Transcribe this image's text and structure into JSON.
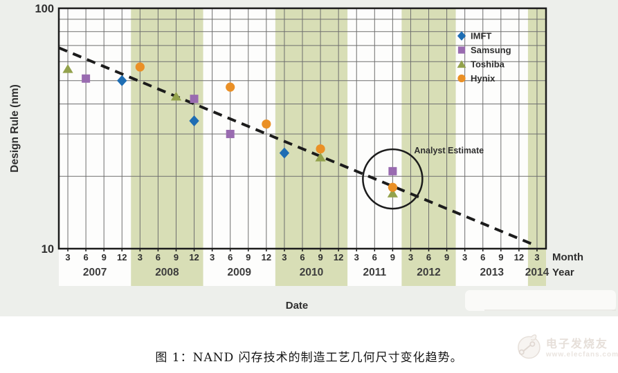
{
  "figure_caption": "图 1：NAND 闪存技术的制造工艺几何尺寸变化趋势。",
  "watermark": {
    "brand": "电子发烧友",
    "url": "www.elecfans.com",
    "logo_icon": "elecfans-circle-logo"
  },
  "chart_data": {
    "type": "scatter",
    "title": "",
    "xlabel": "Date",
    "ylabel": "Design Rule (nm)",
    "yscale": "log",
    "ylim": [
      10,
      100
    ],
    "ytick_labels": [
      "100",
      "10"
    ],
    "grid": true,
    "legend_position": "top-right",
    "band_colors": {
      "white": "#fdfdfc",
      "green": "#d8deb6"
    },
    "x_axis": {
      "month_axis_label": "Month",
      "year_axis_label": "Year",
      "years": [
        {
          "label": "2007",
          "months": [
            "3",
            "6",
            "9",
            "12"
          ],
          "band": "white"
        },
        {
          "label": "2008",
          "months": [
            "3",
            "6",
            "9",
            "12"
          ],
          "band": "green"
        },
        {
          "label": "2009",
          "months": [
            "3",
            "6",
            "9",
            "12"
          ],
          "band": "white"
        },
        {
          "label": "2010",
          "months": [
            "3",
            "6",
            "9",
            "12"
          ],
          "band": "green"
        },
        {
          "label": "2011",
          "months": [
            "3",
            "6",
            "9"
          ],
          "band": "white"
        },
        {
          "label": "2012",
          "months": [
            "3",
            "6",
            "9"
          ],
          "band": "green"
        },
        {
          "label": "2013",
          "months": [
            "3",
            "6",
            "9",
            "12"
          ],
          "band": "white"
        },
        {
          "label": "2014",
          "months": [
            "3"
          ],
          "band": "green"
        }
      ]
    },
    "series": [
      {
        "name": "IMFT",
        "marker": "diamond",
        "color": "#1e6db3",
        "points": [
          {
            "year": "2007",
            "month": 12,
            "value": 50
          },
          {
            "year": "2008",
            "month": 12,
            "value": 34
          },
          {
            "year": "2010",
            "month": 3,
            "value": 25
          }
        ]
      },
      {
        "name": "Samsung",
        "marker": "square",
        "color": "#996bb0",
        "points": [
          {
            "year": "2007",
            "month": 6,
            "value": 51
          },
          {
            "year": "2008",
            "month": 12,
            "value": 42
          },
          {
            "year": "2009",
            "month": 6,
            "value": 30
          },
          {
            "year": "2011",
            "month": 9,
            "value": 21
          }
        ]
      },
      {
        "name": "Toshiba",
        "marker": "triangle",
        "color": "#93a24c",
        "points": [
          {
            "year": "2007",
            "month": 3,
            "value": 56
          },
          {
            "year": "2008",
            "month": 9,
            "value": 43
          },
          {
            "year": "2010",
            "month": 9,
            "value": 24
          },
          {
            "year": "2011",
            "month": 9,
            "value": 17
          }
        ]
      },
      {
        "name": "Hynix",
        "marker": "circle",
        "color": "#ea9026",
        "points": [
          {
            "year": "2008",
            "month": 3,
            "value": 57
          },
          {
            "year": "2009",
            "month": 6,
            "value": 47
          },
          {
            "year": "2009",
            "month": 12,
            "value": 33
          },
          {
            "year": "2010",
            "month": 9,
            "value": 26
          },
          {
            "year": "2011",
            "month": 9,
            "value": 18
          }
        ]
      }
    ],
    "trend_line": {
      "style": "dashed",
      "color": "#1c1c1c",
      "from": {
        "year": "2007",
        "month": 1,
        "value": 68.5
      },
      "to": {
        "year": "2014",
        "month": 2,
        "value": 10.5
      }
    },
    "annotation": {
      "label": "Analyst Estimate",
      "circled_point": {
        "year": "2011",
        "month": 9,
        "value": 19.5
      }
    }
  }
}
